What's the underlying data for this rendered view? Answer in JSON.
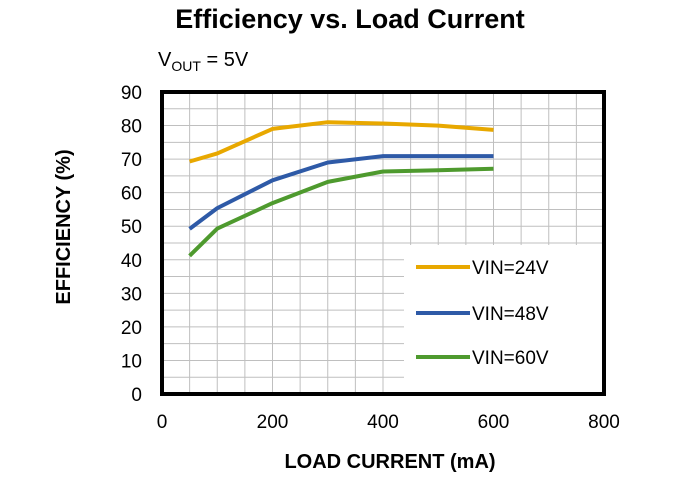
{
  "chart_data": {
    "type": "line",
    "title": "Efficiency vs. Load Current",
    "subtitle": {
      "prefix": "V",
      "subscript": "OUT",
      "suffix": " = 5V"
    },
    "xlabel": "LOAD CURRENT (mA)",
    "ylabel": "EFFICIENCY (%)",
    "xlim": [
      0,
      800
    ],
    "ylim": [
      0,
      90
    ],
    "xticks": [
      0,
      200,
      400,
      600,
      800
    ],
    "yticks": [
      0,
      10,
      20,
      30,
      40,
      50,
      60,
      70,
      80,
      90
    ],
    "grid": true,
    "legend_position": "bottom-right",
    "series": [
      {
        "name": "VIN=24V",
        "color": "#E8A800",
        "x": [
          50,
          100,
          200,
          300,
          400,
          500,
          600
        ],
        "y": [
          69.3,
          71.7,
          79.0,
          81.0,
          80.6,
          80.0,
          78.7
        ]
      },
      {
        "name": "VIN=48V",
        "color": "#2E5AA7",
        "x": [
          50,
          100,
          200,
          300,
          400,
          500,
          600
        ],
        "y": [
          49.2,
          55.4,
          63.7,
          69.0,
          70.9,
          70.9,
          70.9
        ]
      },
      {
        "name": "VIN=60V",
        "color": "#4E9A2E",
        "x": [
          50,
          100,
          200,
          300,
          400,
          500,
          600
        ],
        "y": [
          41.2,
          49.3,
          56.9,
          63.2,
          66.3,
          66.7,
          67.1
        ]
      }
    ]
  }
}
